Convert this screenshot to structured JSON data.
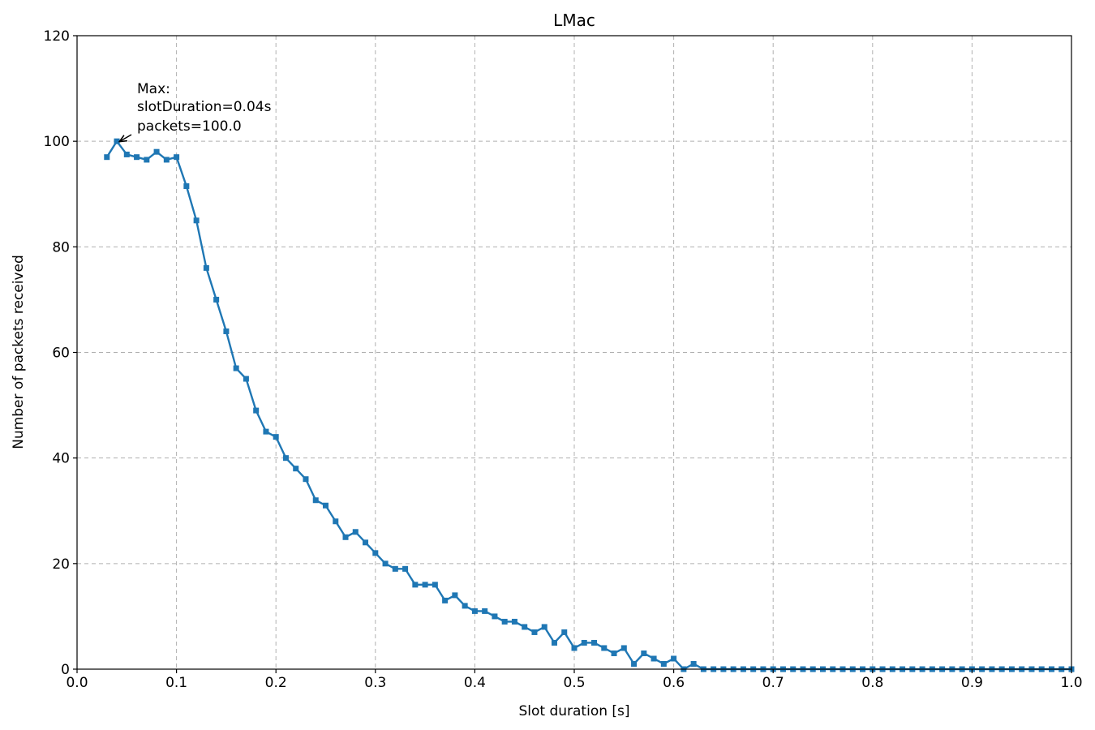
{
  "chart_data": {
    "type": "line",
    "title": "LMac",
    "xlabel": "Slot duration [s]",
    "ylabel": "Number of packets received",
    "xlim": [
      0.0,
      1.0
    ],
    "ylim": [
      0,
      120
    ],
    "xticks": [
      "0.0",
      "0.1",
      "0.2",
      "0.3",
      "0.4",
      "0.5",
      "0.6",
      "0.7",
      "0.8",
      "0.9",
      "1.0"
    ],
    "yticks": [
      "0",
      "20",
      "40",
      "60",
      "80",
      "100",
      "120"
    ],
    "grid": true,
    "series": [
      {
        "color": "#1f77b4",
        "marker": "square",
        "points": [
          [
            0.03,
            97
          ],
          [
            0.04,
            100
          ],
          [
            0.05,
            97.5
          ],
          [
            0.06,
            97
          ],
          [
            0.07,
            96.5
          ],
          [
            0.08,
            98
          ],
          [
            0.09,
            96.5
          ],
          [
            0.1,
            97
          ],
          [
            0.11,
            91.5
          ],
          [
            0.12,
            85
          ],
          [
            0.13,
            76
          ],
          [
            0.14,
            70
          ],
          [
            0.15,
            64
          ],
          [
            0.16,
            57
          ],
          [
            0.17,
            55
          ],
          [
            0.18,
            49
          ],
          [
            0.19,
            45
          ],
          [
            0.2,
            44
          ],
          [
            0.21,
            40
          ],
          [
            0.22,
            38
          ],
          [
            0.23,
            36
          ],
          [
            0.24,
            32
          ],
          [
            0.25,
            31
          ],
          [
            0.26,
            28
          ],
          [
            0.27,
            25
          ],
          [
            0.28,
            26
          ],
          [
            0.29,
            24
          ],
          [
            0.3,
            22
          ],
          [
            0.31,
            20
          ],
          [
            0.32,
            19
          ],
          [
            0.33,
            19
          ],
          [
            0.34,
            16
          ],
          [
            0.35,
            16
          ],
          [
            0.36,
            16
          ],
          [
            0.37,
            13
          ],
          [
            0.38,
            14
          ],
          [
            0.39,
            12
          ],
          [
            0.4,
            11
          ],
          [
            0.41,
            11
          ],
          [
            0.42,
            10
          ],
          [
            0.43,
            9
          ],
          [
            0.44,
            9
          ],
          [
            0.45,
            8
          ],
          [
            0.46,
            7
          ],
          [
            0.47,
            8
          ],
          [
            0.48,
            5
          ],
          [
            0.49,
            7
          ],
          [
            0.5,
            4
          ],
          [
            0.51,
            5
          ],
          [
            0.52,
            5
          ],
          [
            0.53,
            4
          ],
          [
            0.54,
            3
          ],
          [
            0.55,
            4
          ],
          [
            0.56,
            1
          ],
          [
            0.57,
            3
          ],
          [
            0.58,
            2
          ],
          [
            0.59,
            1
          ],
          [
            0.6,
            2
          ],
          [
            0.61,
            0
          ],
          [
            0.62,
            1
          ],
          [
            0.63,
            0
          ],
          [
            0.64,
            0
          ],
          [
            0.65,
            0
          ],
          [
            0.66,
            0
          ],
          [
            0.67,
            0
          ],
          [
            0.68,
            0
          ],
          [
            0.69,
            0
          ],
          [
            0.7,
            0
          ],
          [
            0.71,
            0
          ],
          [
            0.72,
            0
          ],
          [
            0.73,
            0
          ],
          [
            0.74,
            0
          ],
          [
            0.75,
            0
          ],
          [
            0.76,
            0
          ],
          [
            0.77,
            0
          ],
          [
            0.78,
            0
          ],
          [
            0.79,
            0
          ],
          [
            0.8,
            0
          ],
          [
            0.81,
            0
          ],
          [
            0.82,
            0
          ],
          [
            0.83,
            0
          ],
          [
            0.84,
            0
          ],
          [
            0.85,
            0
          ],
          [
            0.86,
            0
          ],
          [
            0.87,
            0
          ],
          [
            0.88,
            0
          ],
          [
            0.89,
            0
          ],
          [
            0.9,
            0
          ],
          [
            0.91,
            0
          ],
          [
            0.92,
            0
          ],
          [
            0.93,
            0
          ],
          [
            0.94,
            0
          ],
          [
            0.95,
            0
          ],
          [
            0.96,
            0
          ],
          [
            0.97,
            0
          ],
          [
            0.98,
            0
          ],
          [
            0.99,
            0
          ],
          [
            1.0,
            0
          ]
        ]
      }
    ],
    "annotation": {
      "lines": [
        "Max:",
        "slotDuration=0.04s",
        "packets=100.0"
      ],
      "point": [
        0.04,
        100
      ]
    }
  }
}
